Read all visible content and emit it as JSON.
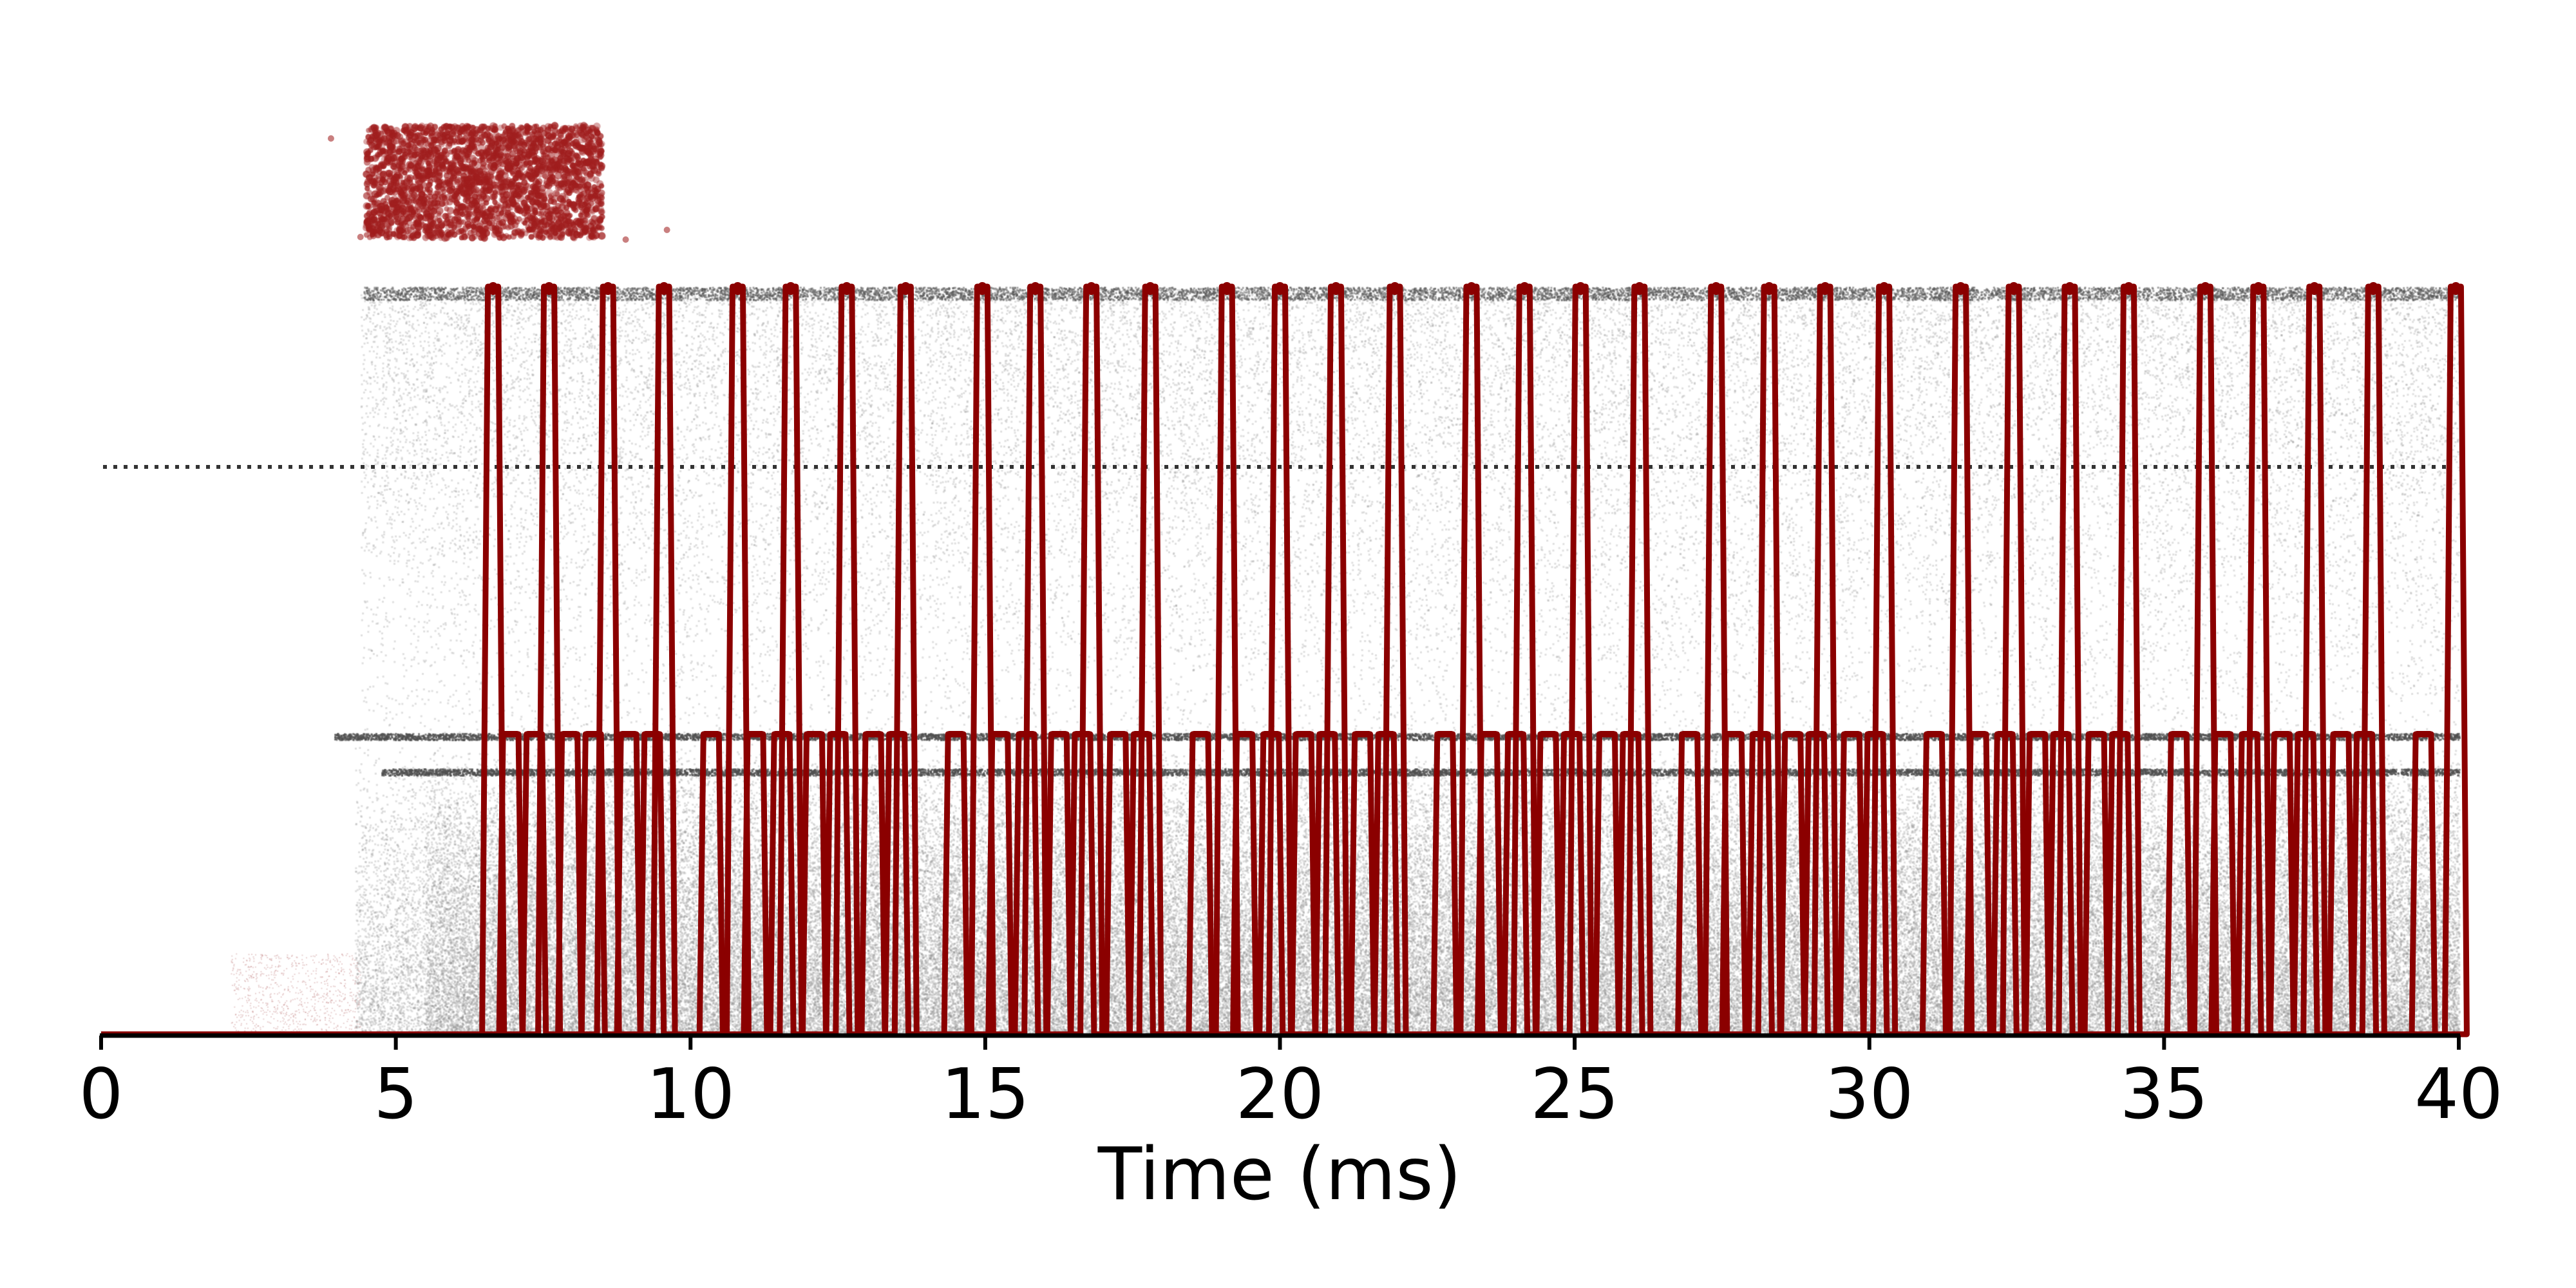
{
  "chart_data": {
    "type": "line",
    "xlabel": "Time (ms)",
    "ylabel": "",
    "xlim": [
      0,
      40
    ],
    "x_ticks": [
      0,
      5,
      10,
      15,
      20,
      25,
      30,
      35,
      40
    ],
    "x_tick_labels": [
      "0",
      "5",
      "10",
      "15",
      "20",
      "25",
      "30",
      "35",
      "40"
    ],
    "grid": false,
    "legend": "none",
    "colors": {
      "trace": "#8b0000",
      "input_raster": "#a52a2a",
      "background_raster": "#9e9e9e",
      "threshold_line": "#333333",
      "axis": "#000000"
    },
    "series": [
      {
        "kind": "input-spike-raster",
        "x_start": 4.5,
        "x_end": 8.5,
        "outliers_x": [
          3.9,
          9.6,
          8.9,
          4.4
        ]
      },
      {
        "kind": "upper-trace-spikes",
        "onset": 6.5,
        "spike_times": [
          6.65,
          7.6,
          8.6,
          9.55,
          10.8,
          11.7,
          12.65,
          13.65,
          14.95,
          15.85,
          16.8,
          17.8,
          19.1,
          20.0,
          20.95,
          21.95,
          23.25,
          24.15,
          25.1,
          26.1,
          27.4,
          28.3,
          29.25,
          30.25,
          31.55,
          32.45,
          33.4,
          34.4,
          35.7,
          36.6,
          37.55,
          38.55,
          39.95
        ]
      },
      {
        "kind": "lower-trace-spikes",
        "onset": 6.0,
        "spike_times": [
          6.95,
          7.35,
          7.95,
          8.35,
          8.95,
          9.35,
          10.35,
          11.1,
          11.55,
          12.1,
          12.5,
          13.1,
          13.5,
          14.5,
          15.25,
          15.7,
          16.25,
          16.65,
          17.25,
          17.65,
          18.65,
          19.4,
          19.85,
          20.4,
          20.8,
          21.4,
          21.8,
          22.8,
          23.55,
          24.0,
          24.55,
          24.95,
          25.55,
          25.95,
          26.95,
          27.7,
          28.15,
          28.7,
          29.1,
          29.7,
          30.1,
          31.1,
          31.85,
          32.3,
          32.85,
          33.25,
          33.85,
          34.25,
          35.25,
          36.0,
          36.45,
          37.0,
          37.4,
          38.0,
          38.4,
          39.4
        ]
      }
    ]
  }
}
